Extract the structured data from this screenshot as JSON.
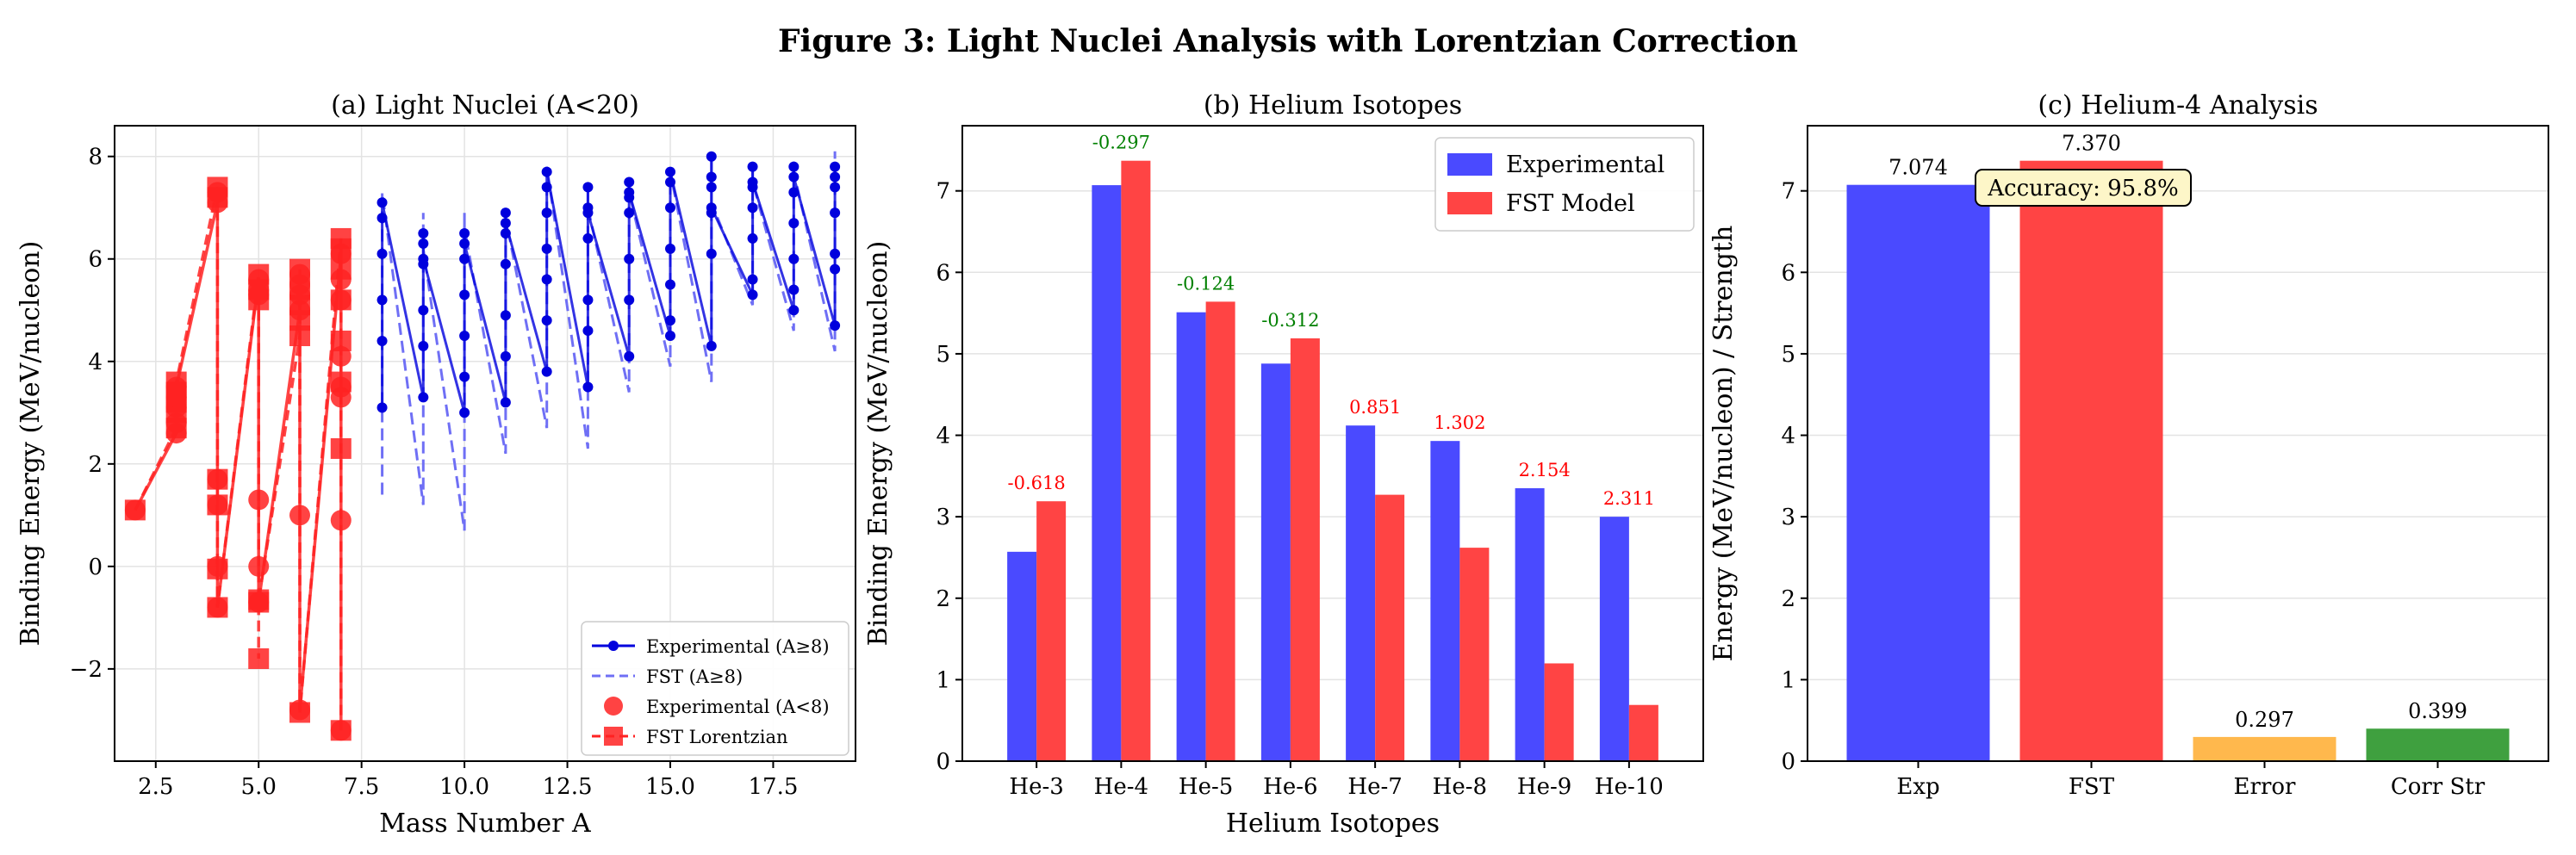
{
  "figure": {
    "title": "Figure 3: Light Nuclei Analysis with Lorentzian Correction"
  },
  "colors": {
    "blue": "#0000dd",
    "fst_blue": "#6f6ff5",
    "red": "#ff2222",
    "bar_blue": "#4a4aff",
    "bar_red": "#ff4444",
    "orange": "#ffb84d",
    "green": "#3fa03f",
    "pos_label": "#008000",
    "neg_label": "#ff0000"
  },
  "chart_data": [
    {
      "id": "a",
      "type": "line",
      "title": "(a) Light Nuclei (A<20)",
      "xlabel": "Mass Number A",
      "ylabel": "Binding Energy (MeV/nucleon)",
      "xlim": [
        1.5,
        19.5
      ],
      "ylim": [
        -3.8,
        8.6
      ],
      "xticks": [
        "2.5",
        "5.0",
        "7.5",
        "10.0",
        "12.5",
        "15.0",
        "17.5"
      ],
      "xtick_values": [
        2.5,
        5.0,
        7.5,
        10.0,
        12.5,
        15.0,
        17.5
      ],
      "yticks": [
        "−2",
        "0",
        "2",
        "4",
        "6",
        "8"
      ],
      "ytick_values": [
        -2,
        0,
        2,
        4,
        6,
        8
      ],
      "grid": true,
      "legend_position": "lower-right",
      "legend": [
        "Experimental (A≥8)",
        "FST (A≥8)",
        "Experimental (A<8)",
        "FST Lorentzian"
      ],
      "exp_heavy": {
        "name": "Experimental (A≥8)",
        "x": [
          8,
          8,
          8,
          8,
          8,
          8,
          9,
          9,
          9,
          9,
          9,
          9,
          9,
          10,
          10,
          10,
          10,
          10,
          10,
          10,
          11,
          11,
          11,
          11,
          11,
          11,
          11,
          12,
          12,
          12,
          12,
          12,
          12,
          12,
          13,
          13,
          13,
          13,
          13,
          13,
          13,
          14,
          14,
          14,
          14,
          14,
          14,
          14,
          15,
          15,
          15,
          15,
          15,
          15,
          15,
          16,
          16,
          16,
          16,
          16,
          16,
          16,
          17,
          17,
          17,
          17,
          17,
          17,
          17,
          18,
          18,
          18,
          18,
          18,
          18,
          18,
          19,
          19,
          19,
          19,
          19,
          19,
          19
        ],
        "y": [
          3.1,
          4.4,
          5.2,
          6.1,
          6.8,
          7.1,
          3.3,
          4.3,
          5.0,
          5.9,
          6.3,
          6.5,
          6.0,
          3.0,
          3.7,
          4.5,
          5.3,
          6.0,
          6.5,
          6.3,
          3.2,
          4.1,
          4.9,
          5.9,
          6.5,
          6.9,
          6.7,
          3.8,
          4.8,
          5.6,
          6.2,
          6.9,
          7.4,
          7.7,
          3.5,
          4.6,
          5.2,
          6.4,
          7.0,
          7.4,
          6.9,
          4.1,
          5.2,
          6.0,
          6.9,
          7.2,
          7.5,
          7.3,
          4.5,
          4.8,
          5.5,
          6.2,
          7.0,
          7.5,
          7.7,
          4.3,
          6.1,
          6.9,
          7.4,
          7.6,
          8.0,
          7.0,
          5.3,
          5.6,
          6.4,
          7.0,
          7.4,
          7.8,
          7.5,
          5.0,
          5.4,
          6.0,
          6.7,
          7.3,
          7.8,
          7.6,
          4.7,
          5.8,
          6.1,
          6.9,
          7.4,
          7.8,
          7.6
        ]
      },
      "fst_heavy": {
        "name": "FST (A≥8)",
        "x": [
          8,
          8,
          8,
          8,
          8,
          8,
          9,
          9,
          9,
          9,
          9,
          9,
          9,
          10,
          10,
          10,
          10,
          10,
          10,
          10,
          11,
          11,
          11,
          11,
          11,
          11,
          11,
          12,
          12,
          12,
          12,
          12,
          12,
          12,
          13,
          13,
          13,
          13,
          13,
          13,
          13,
          14,
          14,
          14,
          14,
          14,
          14,
          14,
          15,
          15,
          15,
          15,
          15,
          15,
          15,
          16,
          16,
          16,
          16,
          16,
          16,
          16,
          17,
          17,
          17,
          17,
          17,
          17,
          17,
          18,
          18,
          18,
          18,
          18,
          18,
          18,
          19,
          19,
          19,
          19,
          19,
          19,
          19
        ],
        "y": [
          1.4,
          3.5,
          5.0,
          6.0,
          7.0,
          7.3,
          1.2,
          3.0,
          4.5,
          5.5,
          6.5,
          6.9,
          6.2,
          0.7,
          2.5,
          4.0,
          5.3,
          6.3,
          6.9,
          6.6,
          2.2,
          3.5,
          4.7,
          5.9,
          6.7,
          7.0,
          6.8,
          2.7,
          4.2,
          5.4,
          6.3,
          7.0,
          7.5,
          7.8,
          2.3,
          3.9,
          5.0,
          6.3,
          7.0,
          7.4,
          7.0,
          3.4,
          4.7,
          5.8,
          6.8,
          7.2,
          7.5,
          7.3,
          3.9,
          4.6,
          5.5,
          6.3,
          7.0,
          7.5,
          7.7,
          3.6,
          5.6,
          6.8,
          7.4,
          7.7,
          8.0,
          7.1,
          5.1,
          5.5,
          6.4,
          7.0,
          7.4,
          7.8,
          7.5,
          4.6,
          5.3,
          6.0,
          6.8,
          7.4,
          7.9,
          7.7,
          4.2,
          5.7,
          6.1,
          7.0,
          7.5,
          8.1,
          7.7
        ]
      },
      "exp_light": {
        "name": "Experimental (A<8)",
        "x": [
          2,
          3,
          3,
          3,
          3,
          3,
          4,
          4,
          4,
          4,
          4,
          4,
          5,
          5,
          5,
          5,
          5,
          5,
          6,
          6,
          6,
          6,
          6,
          6,
          7,
          7,
          7,
          7,
          7,
          7,
          7,
          7
        ],
        "y": [
          1.1,
          2.6,
          2.8,
          3.1,
          3.3,
          3.5,
          7.1,
          7.3,
          1.7,
          1.2,
          0.0,
          -0.8,
          5.6,
          5.4,
          5.3,
          1.3,
          0.0,
          -0.7,
          5.0,
          5.3,
          5.5,
          5.7,
          1.0,
          -2.8,
          6.1,
          5.6,
          5.2,
          4.1,
          3.5,
          3.3,
          0.9,
          -3.2
        ]
      },
      "fst_light": {
        "name": "FST Lorentzian",
        "x": [
          2,
          3,
          3,
          3,
          3,
          3,
          4,
          4,
          4,
          4,
          4,
          4,
          5,
          5,
          5,
          5,
          5,
          5,
          6,
          6,
          6,
          6,
          6,
          6,
          7,
          7,
          7,
          7,
          7,
          7,
          7,
          7
        ],
        "y": [
          1.1,
          2.7,
          3.0,
          3.2,
          3.4,
          3.6,
          7.4,
          7.2,
          1.7,
          1.2,
          -0.05,
          -0.8,
          5.7,
          5.4,
          5.2,
          -0.7,
          -1.8,
          -0.65,
          4.5,
          4.8,
          5.1,
          5.4,
          5.8,
          -2.85,
          6.4,
          6.2,
          5.8,
          5.2,
          4.4,
          3.6,
          2.3,
          -3.2
        ]
      }
    },
    {
      "id": "b",
      "type": "bar",
      "title": "(b) Helium Isotopes",
      "xlabel": "Helium Isotopes",
      "ylabel": "Binding Energy (MeV/nucleon)",
      "ylim": [
        0,
        7.8
      ],
      "yticks": [
        "0",
        "1",
        "2",
        "3",
        "4",
        "5",
        "6",
        "7"
      ],
      "ytick_values": [
        0,
        1,
        2,
        3,
        4,
        5,
        6,
        7
      ],
      "grid": true,
      "legend_position": "top-right",
      "categories": [
        "He-3",
        "He-4",
        "He-5",
        "He-6",
        "He-7",
        "He-8",
        "He-9",
        "He-10"
      ],
      "series": [
        {
          "name": "Experimental",
          "values": [
            2.57,
            7.07,
            5.51,
            4.88,
            4.12,
            3.93,
            3.35,
            3.0
          ]
        },
        {
          "name": "FST Model",
          "values": [
            3.19,
            7.37,
            5.64,
            5.19,
            3.27,
            2.62,
            1.2,
            0.69
          ]
        }
      ],
      "differences": [
        "-0.618",
        "-0.297",
        "-0.124",
        "-0.312",
        "0.851",
        "1.302",
        "2.154",
        "2.311"
      ],
      "difference_colors": [
        "neg_label",
        "pos_label",
        "pos_label",
        "pos_label",
        "neg_label",
        "neg_label",
        "neg_label",
        "neg_label"
      ]
    },
    {
      "id": "c",
      "type": "bar",
      "title": "(c) Helium-4 Analysis",
      "ylabel": "Energy (MeV/nucleon) / Strength",
      "ylim": [
        0,
        7.8
      ],
      "yticks": [
        "0",
        "1",
        "2",
        "3",
        "4",
        "5",
        "6",
        "7"
      ],
      "ytick_values": [
        0,
        1,
        2,
        3,
        4,
        5,
        6,
        7
      ],
      "grid": true,
      "categories": [
        "Exp",
        "FST",
        "Error",
        "Corr Str"
      ],
      "values": [
        7.074,
        7.37,
        0.297,
        0.399
      ],
      "value_labels": [
        "7.074",
        "7.370",
        "0.297",
        "0.399"
      ],
      "bar_colors": [
        "bar_blue",
        "bar_red",
        "orange",
        "green"
      ],
      "annotation": "Accuracy: 95.8%"
    }
  ]
}
